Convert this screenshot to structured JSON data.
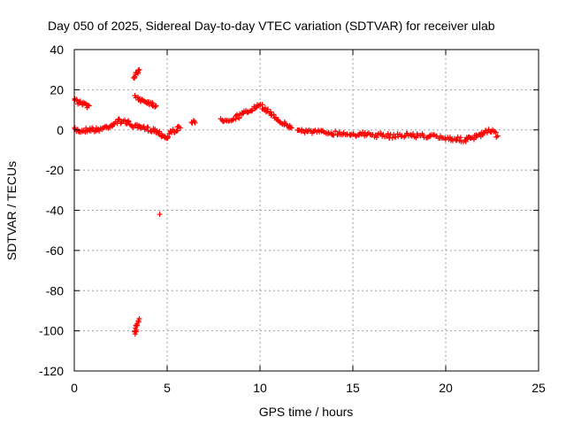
{
  "chart_data": {
    "type": "scatter",
    "title": "Day 050 of 2025, Sidereal Day-to-day VTEC variation (SDTVAR) for receiver ulab",
    "xlabel": "GPS time / hours",
    "ylabel": "SDTVAR / TECUs",
    "xlim": [
      0,
      25
    ],
    "ylim": [
      -120,
      40
    ],
    "xticks": [
      0,
      5,
      10,
      15,
      20,
      25
    ],
    "yticks": [
      40,
      20,
      0,
      -20,
      -40,
      -60,
      -80,
      -100,
      -120
    ],
    "grid": true,
    "marker": "+",
    "color": "#ff0000",
    "segments": [
      {
        "name": "main-band",
        "points": [
          [
            0.0,
            0.0
          ],
          [
            0.4,
            -0.5
          ],
          [
            0.8,
            0.5
          ],
          [
            1.2,
            0.0
          ],
          [
            1.6,
            1.0
          ],
          [
            2.0,
            2.5
          ],
          [
            2.4,
            4.5
          ],
          [
            2.8,
            4.0
          ],
          [
            3.2,
            2.0
          ],
          [
            3.5,
            1.0
          ],
          [
            3.9,
            0.5
          ],
          [
            4.3,
            0.0
          ],
          [
            4.6,
            -1.5
          ],
          [
            4.8,
            -3.0
          ],
          [
            5.0,
            -4.0
          ],
          [
            5.2,
            -1.0
          ],
          [
            5.5,
            0.0
          ],
          [
            5.7,
            1.0
          ]
        ]
      },
      {
        "name": "upper-arc-0",
        "points": [
          [
            0.0,
            15.0
          ],
          [
            0.3,
            13.5
          ],
          [
            0.6,
            12.5
          ],
          [
            0.8,
            12.0
          ]
        ]
      },
      {
        "name": "upper-arc-3",
        "points": [
          [
            3.3,
            16.0
          ],
          [
            3.6,
            15.0
          ],
          [
            3.9,
            14.0
          ],
          [
            4.2,
            13.0
          ],
          [
            4.4,
            12.0
          ]
        ]
      },
      {
        "name": "spike-3-4",
        "points": [
          [
            3.2,
            26.0
          ],
          [
            3.3,
            28.0
          ],
          [
            3.4,
            29.0
          ],
          [
            3.5,
            30.0
          ]
        ]
      },
      {
        "name": "low-outlier",
        "points": [
          [
            4.6,
            -42.0
          ]
        ]
      },
      {
        "name": "low-spike",
        "points": [
          [
            3.25,
            -102.0
          ],
          [
            3.3,
            -100.0
          ],
          [
            3.35,
            -98.0
          ],
          [
            3.4,
            -96.0
          ],
          [
            3.5,
            -94.0
          ]
        ]
      },
      {
        "name": "pts-6",
        "points": [
          [
            6.3,
            4.0
          ],
          [
            6.5,
            3.5
          ]
        ]
      },
      {
        "name": "main-band-2",
        "points": [
          [
            7.9,
            5.0
          ],
          [
            8.5,
            5.5
          ],
          [
            9.0,
            7.5
          ],
          [
            9.5,
            10.0
          ],
          [
            10.0,
            12.0
          ],
          [
            10.3,
            10.5
          ],
          [
            10.6,
            8.0
          ],
          [
            11.0,
            5.0
          ],
          [
            11.4,
            2.5
          ],
          [
            11.7,
            1.0
          ]
        ]
      },
      {
        "name": "main-band-3",
        "points": [
          [
            12.0,
            0.0
          ],
          [
            13.0,
            -1.0
          ],
          [
            14.0,
            -1.5
          ],
          [
            15.0,
            -2.0
          ],
          [
            16.0,
            -2.5
          ],
          [
            17.0,
            -3.0
          ],
          [
            18.0,
            -2.5
          ],
          [
            19.0,
            -3.0
          ],
          [
            20.0,
            -4.0
          ],
          [
            21.0,
            -5.0
          ],
          [
            21.5,
            -4.0
          ],
          [
            22.0,
            -2.0
          ],
          [
            22.5,
            0.0
          ],
          [
            22.8,
            -3.0
          ]
        ]
      }
    ]
  }
}
